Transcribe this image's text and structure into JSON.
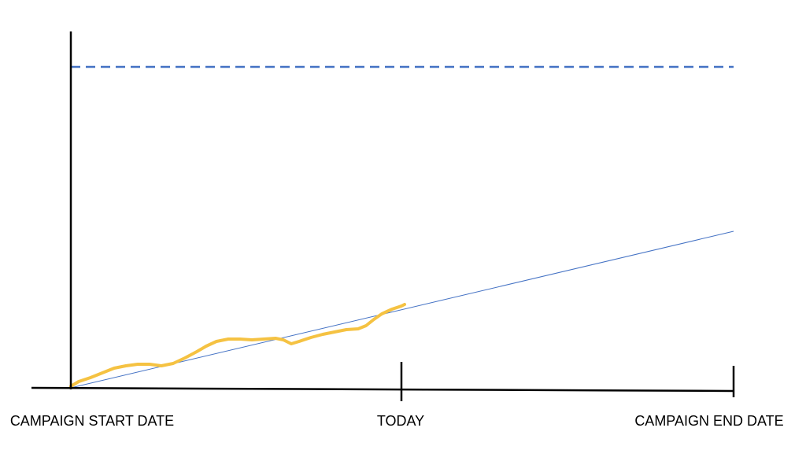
{
  "axis_labels": {
    "start": "CAMPAIGN START DATE",
    "today": "TODAY",
    "end": "CAMPAIGN END DATE"
  }
}
